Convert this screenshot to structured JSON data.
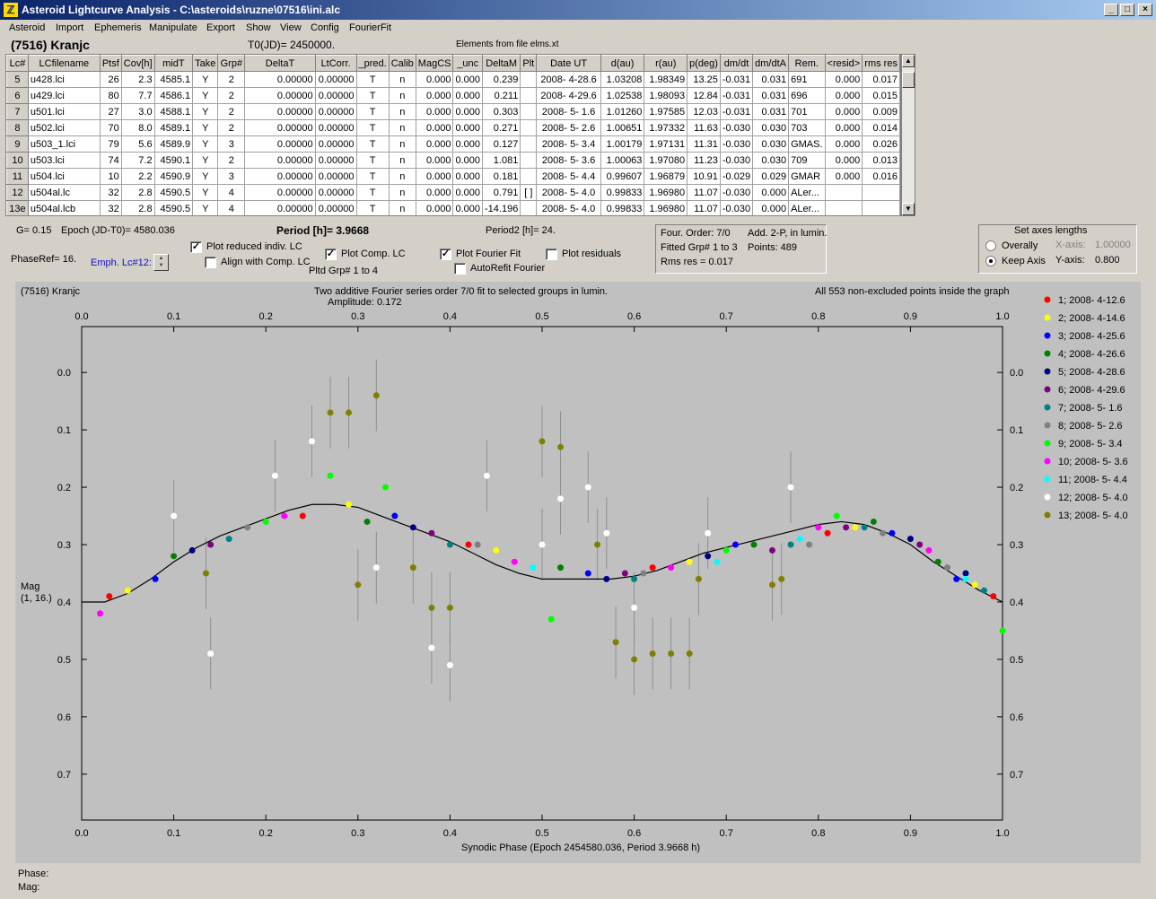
{
  "window": {
    "title": "Asteroid Lightcurve Analysis - C:\\asteroids\\ruzne\\07516\\ini.alc",
    "icon": "app-icon",
    "controls": {
      "minimize": "_",
      "maximize": "□",
      "close": "×"
    }
  },
  "menu": [
    "Asteroid",
    "Import",
    "Ephemeris",
    "Manipulate",
    "Export",
    "Show",
    "View",
    "Config",
    "FourierFit"
  ],
  "header": {
    "object_name": "(7516) Kranjc",
    "t0": "T0(JD)= 2450000.",
    "elements": "Elements from file elms.xt"
  },
  "table": {
    "columns": [
      "Lc#",
      "LCfilename",
      "Ptsf",
      "Cov[h]",
      "midT",
      "Take",
      "Grp#",
      "DeltaT",
      "LtCorr.",
      "_pred.",
      "Calib",
      "MagCS",
      "_unc",
      "DeltaM",
      "Plt",
      "Date UT",
      "d(au)",
      "r(au)",
      "p(deg)",
      "dm/dt",
      "dm/dtA",
      "Rem.",
      "<resid>",
      "rms res"
    ],
    "rows": [
      [
        "5",
        "u428.lci",
        "26",
        "2.3",
        "4585.1",
        "Y",
        "2",
        "0.00000",
        "0.00000",
        "T",
        "n",
        "0.000",
        "0.000",
        "0.239",
        "",
        "2008- 4-28.6",
        "1.03208",
        "1.98349",
        "13.25",
        "-0.031",
        "0.031",
        "691",
        "0.000",
        "0.017"
      ],
      [
        "6",
        "u429.lci",
        "80",
        "7.7",
        "4586.1",
        "Y",
        "2",
        "0.00000",
        "0.00000",
        "T",
        "n",
        "0.000",
        "0.000",
        "0.211",
        "",
        "2008- 4-29.6",
        "1.02538",
        "1.98093",
        "12.84",
        "-0.031",
        "0.031",
        "696",
        "0.000",
        "0.015"
      ],
      [
        "7",
        "u501.lci",
        "27",
        "3.0",
        "4588.1",
        "Y",
        "2",
        "0.00000",
        "0.00000",
        "T",
        "n",
        "0.000",
        "0.000",
        "0.303",
        "",
        "2008- 5- 1.6",
        "1.01260",
        "1.97585",
        "12.03",
        "-0.031",
        "0.031",
        "701",
        "0.000",
        "0.009"
      ],
      [
        "8",
        "u502.lci",
        "70",
        "8.0",
        "4589.1",
        "Y",
        "2",
        "0.00000",
        "0.00000",
        "T",
        "n",
        "0.000",
        "0.000",
        "0.271",
        "",
        "2008- 5- 2.6",
        "1.00651",
        "1.97332",
        "11.63",
        "-0.030",
        "0.030",
        "703",
        "0.000",
        "0.014"
      ],
      [
        "9",
        "u503_1.lci",
        "79",
        "5.6",
        "4589.9",
        "Y",
        "3",
        "0.00000",
        "0.00000",
        "T",
        "n",
        "0.000",
        "0.000",
        "0.127",
        "",
        "2008- 5- 3.4",
        "1.00179",
        "1.97131",
        "11.31",
        "-0.030",
        "0.030",
        "GMAS.",
        "0.000",
        "0.026"
      ],
      [
        "10",
        "u503.lci",
        "74",
        "7.2",
        "4590.1",
        "Y",
        "2",
        "0.00000",
        "0.00000",
        "T",
        "n",
        "0.000",
        "0.000",
        "1.081",
        "",
        "2008- 5- 3.6",
        "1.00063",
        "1.97080",
        "11.23",
        "-0.030",
        "0.030",
        "709",
        "0.000",
        "0.013"
      ],
      [
        "11",
        "u504.lci",
        "10",
        "2.2",
        "4590.9",
        "Y",
        "3",
        "0.00000",
        "0.00000",
        "T",
        "n",
        "0.000",
        "0.000",
        "0.181",
        "",
        "2008- 5- 4.4",
        "0.99607",
        "1.96879",
        "10.91",
        "-0.029",
        "0.029",
        "GMAR",
        "0.000",
        "0.016"
      ],
      [
        "12",
        "u504al.lc",
        "32",
        "2.8",
        "4590.5",
        "Y",
        "4",
        "0.00000",
        "0.00000",
        "T",
        "n",
        "0.000",
        "0.000",
        "0.791",
        "[ ]",
        "2008- 5- 4.0",
        "0.99833",
        "1.96980",
        "11.07",
        "-0.030",
        "0.000",
        "ALer...",
        "",
        ""
      ],
      [
        "13e",
        "u504al.lcb",
        "32",
        "2.8",
        "4590.5",
        "Y",
        "4",
        "0.00000",
        "0.00000",
        "T",
        "n",
        "0.000",
        "0.000",
        "-14.196",
        "",
        "2008- 5- 4.0",
        "0.99833",
        "1.96980",
        "11.07",
        "-0.030",
        "0.000",
        "ALer...",
        "",
        ""
      ]
    ]
  },
  "controls": {
    "g": "G= 0.15",
    "epoch": "Epoch (JD-T0)= 4580.036",
    "period": "Period [h]= 3.9668",
    "period2": "Period2 [h]= 24.",
    "phaseref": "PhaseRef= 16.",
    "emph": "Emph. Lc#12:",
    "plot_reduced": "Plot reduced indiv. LC",
    "align": "Align with Comp. LC",
    "plot_comp": "Plot Comp. LC",
    "pltd_grp": "Pltd Grp#  1  to  4",
    "plot_fourier": "Plot Fourier Fit",
    "autorefit": "AutoRefit Fourier",
    "plot_residuals": "Plot residuals",
    "check_mark": "✓"
  },
  "fourier_info": {
    "order": "Four. Order:  7/0",
    "add": "Add. 2-P, in lumin.",
    "fitted": "Fitted Grp# 1 to 3",
    "points": "Points: 489",
    "rms": "Rms res      = 0.017"
  },
  "axes_box": {
    "title": "Set axes lengths",
    "overally": "Overally",
    "keep_axis": "Keep Axis",
    "x_axis_label": "X-axis:",
    "x_axis_value": "1.00000",
    "y_axis_label": "Y-axis:",
    "y_axis_value": "0.800"
  },
  "plot": {
    "object": "(7516) Kranjc",
    "title_line1": "Two additive Fourier series order 7/0 fit to selected groups in lumin.",
    "title_line2": "Amplitude: 0.172",
    "right_note": "All 553 non-excluded points inside the graph",
    "ylabel_line1": "Mag",
    "ylabel_line2": "(1, 16.)",
    "xlabel": "Synodic Phase (Epoch 2454580.036, Period 3.9668 h)"
  },
  "chart_data": {
    "type": "scatter",
    "title": "Two additive Fourier series order 7/0 fit to selected groups in lumin.",
    "subtitle": "Amplitude: 0.172",
    "xlabel": "Synodic Phase (Epoch 2454580.036, Period 3.9668 h)",
    "ylabel": "Mag (1, 16.)",
    "xlim": [
      0.0,
      1.0
    ],
    "ylim": [
      0.78,
      -0.08
    ],
    "y_inverted": true,
    "x_ticks": [
      "0.0",
      "0.1",
      "0.2",
      "0.3",
      "0.4",
      "0.5",
      "0.6",
      "0.7",
      "0.8",
      "0.9",
      "1.0"
    ],
    "y_ticks": [
      "0.0",
      "0.1",
      "0.2",
      "0.3",
      "0.4",
      "0.5",
      "0.6",
      "0.7"
    ],
    "grid": false,
    "legend_position": "right",
    "series": [
      {
        "name": "1; 2008- 4-12.6",
        "color": "#ff0000",
        "x": [
          0.03,
          0.24,
          0.42,
          0.62,
          0.81,
          0.99
        ],
        "y": [
          0.39,
          0.25,
          0.3,
          0.34,
          0.28,
          0.39
        ]
      },
      {
        "name": "2; 2008- 4-14.6",
        "color": "#ffff00",
        "x": [
          0.05,
          0.29,
          0.45,
          0.66,
          0.84,
          0.97
        ],
        "y": [
          0.38,
          0.23,
          0.31,
          0.33,
          0.27,
          0.37
        ]
      },
      {
        "name": "3; 2008- 4-25.6",
        "color": "#0000ff",
        "x": [
          0.08,
          0.34,
          0.55,
          0.71,
          0.88,
          0.95
        ],
        "y": [
          0.36,
          0.25,
          0.35,
          0.3,
          0.28,
          0.36
        ]
      },
      {
        "name": "4; 2008- 4-26.6",
        "color": "#008000",
        "x": [
          0.1,
          0.31,
          0.52,
          0.73,
          0.86,
          0.93
        ],
        "y": [
          0.32,
          0.26,
          0.34,
          0.3,
          0.26,
          0.33
        ]
      },
      {
        "name": "5; 2008- 4-28.6",
        "color": "#000080",
        "x": [
          0.12,
          0.36,
          0.57,
          0.68,
          0.9,
          0.96
        ],
        "y": [
          0.31,
          0.27,
          0.36,
          0.32,
          0.29,
          0.35
        ]
      },
      {
        "name": "6; 2008- 4-29.6",
        "color": "#800080",
        "x": [
          0.14,
          0.38,
          0.59,
          0.75,
          0.83,
          0.91
        ],
        "y": [
          0.3,
          0.28,
          0.35,
          0.31,
          0.27,
          0.3
        ]
      },
      {
        "name": "7; 2008- 5- 1.6",
        "color": "#008080",
        "x": [
          0.16,
          0.4,
          0.6,
          0.77,
          0.85,
          0.98
        ],
        "y": [
          0.29,
          0.3,
          0.36,
          0.3,
          0.27,
          0.38
        ]
      },
      {
        "name": "8; 2008- 5- 2.6",
        "color": "#808080",
        "x": [
          0.18,
          0.43,
          0.61,
          0.79,
          0.87,
          0.94
        ],
        "y": [
          0.27,
          0.3,
          0.35,
          0.3,
          0.28,
          0.34
        ]
      },
      {
        "name": "9; 2008- 5- 3.4",
        "color": "#00ff00",
        "x": [
          0.2,
          0.27,
          0.33,
          0.51,
          0.7,
          0.82,
          1.0
        ],
        "y": [
          0.26,
          0.18,
          0.2,
          0.43,
          0.31,
          0.25,
          0.45
        ]
      },
      {
        "name": "10; 2008- 5- 3.6",
        "color": "#ff00ff",
        "x": [
          0.02,
          0.22,
          0.47,
          0.64,
          0.8,
          0.92
        ],
        "y": [
          0.42,
          0.25,
          0.33,
          0.34,
          0.27,
          0.31
        ]
      },
      {
        "name": "11; 2008- 5- 4.4",
        "color": "#00ffff",
        "x": [
          0.49,
          0.69,
          0.78,
          0.96
        ],
        "y": [
          0.34,
          0.33,
          0.29,
          0.36
        ]
      },
      {
        "name": "12; 2008- 5- 4.0",
        "color": "#ffffff",
        "x": [
          0.1,
          0.14,
          0.21,
          0.25,
          0.32,
          0.38,
          0.4,
          0.44,
          0.5,
          0.52,
          0.55,
          0.57,
          0.6,
          0.68,
          0.77
        ],
        "y": [
          0.25,
          0.49,
          0.18,
          0.12,
          0.34,
          0.48,
          0.51,
          0.18,
          0.3,
          0.22,
          0.2,
          0.28,
          0.41,
          0.28,
          0.2
        ]
      },
      {
        "name": "13; 2008- 5- 4.0",
        "color": "#808000",
        "x": [
          0.135,
          0.27,
          0.29,
          0.3,
          0.32,
          0.36,
          0.38,
          0.4,
          0.5,
          0.52,
          0.56,
          0.58,
          0.6,
          0.62,
          0.64,
          0.66,
          0.67,
          0.75,
          0.76
        ],
        "y": [
          0.35,
          0.07,
          0.07,
          0.37,
          0.04,
          0.34,
          0.41,
          0.41,
          0.12,
          0.13,
          0.3,
          0.47,
          0.5,
          0.49,
          0.49,
          0.49,
          0.36,
          0.37,
          0.36
        ]
      }
    ],
    "fourier_fit": {
      "name": "Fourier fit",
      "color": "#000000",
      "x": [
        0.0,
        0.025,
        0.05,
        0.075,
        0.1,
        0.125,
        0.15,
        0.175,
        0.2,
        0.225,
        0.25,
        0.275,
        0.3,
        0.325,
        0.35,
        0.375,
        0.4,
        0.425,
        0.45,
        0.475,
        0.5,
        0.525,
        0.55,
        0.575,
        0.6,
        0.625,
        0.65,
        0.675,
        0.7,
        0.725,
        0.75,
        0.775,
        0.8,
        0.825,
        0.85,
        0.875,
        0.9,
        0.925,
        0.95,
        0.975,
        1.0
      ],
      "y": [
        0.4,
        0.4,
        0.385,
        0.36,
        0.33,
        0.305,
        0.285,
        0.27,
        0.255,
        0.24,
        0.23,
        0.23,
        0.235,
        0.25,
        0.265,
        0.28,
        0.295,
        0.315,
        0.335,
        0.35,
        0.36,
        0.36,
        0.36,
        0.36,
        0.355,
        0.345,
        0.33,
        0.315,
        0.305,
        0.295,
        0.285,
        0.275,
        0.265,
        0.26,
        0.265,
        0.28,
        0.3,
        0.33,
        0.355,
        0.38,
        0.4
      ]
    }
  },
  "status": {
    "phase_label": "Phase:",
    "mag_label": "Mag:"
  }
}
